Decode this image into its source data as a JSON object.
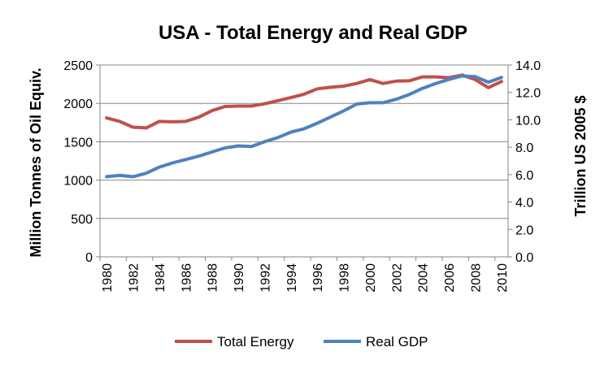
{
  "chart_data": {
    "type": "line",
    "title": "USA - Total Energy and Real GDP",
    "xlabel": "",
    "ylabel_left": "Million Tonnes of Oil Equiv.",
    "ylabel_right": "Trillion US 2005 $",
    "ylim_left": [
      0,
      2500
    ],
    "ylim_right": [
      0,
      14
    ],
    "y_ticks_left": [
      "0",
      "500",
      "1000",
      "1500",
      "2000",
      "2500"
    ],
    "y_ticks_right": [
      "0.0",
      "2.0",
      "4.0",
      "6.0",
      "8.0",
      "10.0",
      "12.0",
      "14.0"
    ],
    "x": [
      "1980",
      "1981",
      "1982",
      "1983",
      "1984",
      "1985",
      "1986",
      "1987",
      "1988",
      "1989",
      "1990",
      "1991",
      "1992",
      "1993",
      "1994",
      "1995",
      "1996",
      "1997",
      "1998",
      "1999",
      "2000",
      "2001",
      "2002",
      "2003",
      "2004",
      "2005",
      "2006",
      "2007",
      "2008",
      "2009",
      "2010"
    ],
    "x_tick_labels": [
      "1980",
      "1982",
      "1984",
      "1986",
      "1988",
      "1990",
      "1992",
      "1994",
      "1996",
      "1998",
      "2000",
      "2002",
      "2004",
      "2006",
      "2008",
      "2010"
    ],
    "grid": true,
    "legend_position": "bottom",
    "series": [
      {
        "name": "Total Energy",
        "axis": "left",
        "color": "#C0504D",
        "values": [
          1810,
          1765,
          1690,
          1680,
          1765,
          1760,
          1765,
          1820,
          1905,
          1960,
          1965,
          1965,
          1995,
          2035,
          2075,
          2120,
          2190,
          2210,
          2225,
          2260,
          2310,
          2260,
          2290,
          2295,
          2345,
          2345,
          2335,
          2370,
          2310,
          2205,
          2285
        ]
      },
      {
        "name": "Real GDP",
        "axis": "right",
        "color": "#4F81BD",
        "values": [
          5.85,
          5.95,
          5.85,
          6.1,
          6.55,
          6.85,
          7.1,
          7.35,
          7.65,
          7.95,
          8.1,
          8.05,
          8.4,
          8.7,
          9.1,
          9.35,
          9.75,
          10.2,
          10.65,
          11.15,
          11.25,
          11.25,
          11.5,
          11.85,
          12.3,
          12.65,
          12.95,
          13.2,
          13.15,
          12.75,
          13.1
        ]
      }
    ]
  }
}
